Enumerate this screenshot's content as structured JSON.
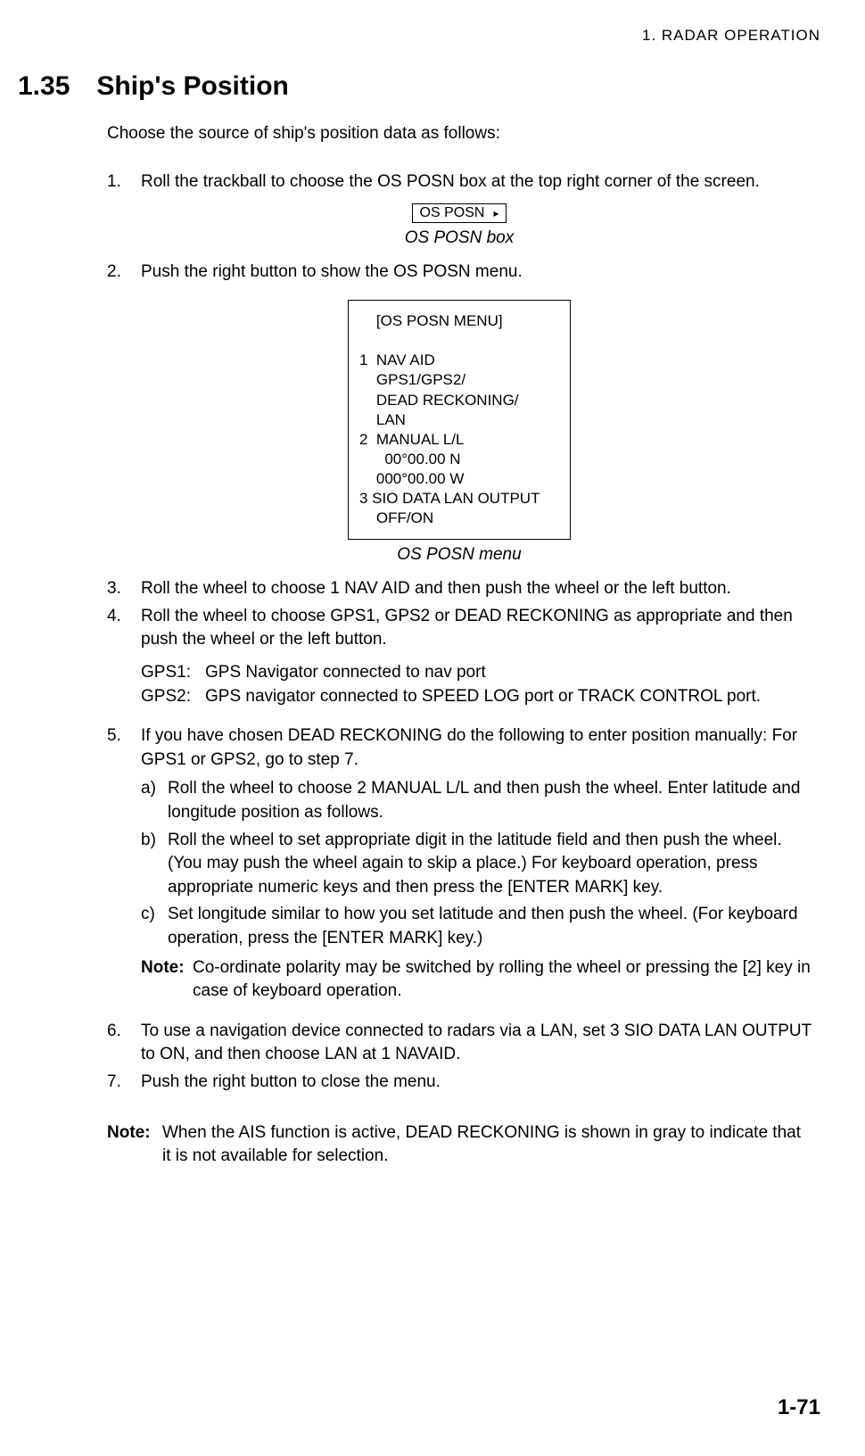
{
  "chapter_header": "1.  RADAR  OPERATION",
  "section": {
    "num": "1.35",
    "title": "Ship's Position"
  },
  "intro": "Choose the source of ship's position data as follows:",
  "steps": {
    "s1": {
      "num": "1.",
      "text": "Roll the trackball to choose the OS POSN box at the top right corner of the screen."
    },
    "s2": {
      "num": "2.",
      "text": "Push the right button to show the OS POSN menu."
    },
    "s3": {
      "num": "3.",
      "text": "Roll the wheel to choose 1 NAV AID and then push the wheel or the left button."
    },
    "s4": {
      "num": "4.",
      "text": "Roll the wheel to choose GPS1, GPS2 or DEAD RECKONING as appropriate and then push the wheel or the left button."
    },
    "s5": {
      "num": "5.",
      "text": "If you have chosen DEAD RECKONING do the following to enter position manually: For GPS1 or GPS2, go to step 7."
    },
    "s6": {
      "num": "6.",
      "text": "To use a navigation device connected to radars via a LAN, set 3 SIO DATA LAN OUTPUT to ON, and then choose LAN at 1 NAVAID."
    },
    "s7": {
      "num": "7.",
      "text": "Push the right button to close the menu."
    }
  },
  "os_posn_box": {
    "label": "OS POSN",
    "caption": "OS POSN box"
  },
  "menu": {
    "text": "    [OS POSN MENU]\n\n1  NAV AID\n    GPS1/GPS2/\n    DEAD RECKONING/\n    LAN\n2  MANUAL L/L\n      00°00.00 N\n    000°00.00 W\n3 SIO DATA LAN OUTPUT\n    OFF/ON",
    "caption": "OS POSN menu"
  },
  "gps_defs": {
    "gps1": {
      "label": "GPS1:",
      "text": "GPS Navigator connected to nav port"
    },
    "gps2": {
      "label": "GPS2:",
      "text": "GPS navigator connected to SPEED LOG port or TRACK CONTROL port."
    }
  },
  "sub_steps": {
    "a": {
      "num": "a)",
      "text": "Roll the wheel to choose 2 MANUAL L/L and then push the wheel. Enter latitude and longitude position as follows."
    },
    "b": {
      "num": "b)",
      "text": "Roll the wheel to set appropriate digit in the latitude field and then push the wheel. (You may push the wheel again to skip a place.) For keyboard operation, press appropriate numeric keys and then press the [ENTER MARK] key."
    },
    "c": {
      "num": "c)",
      "text": "Set longitude similar to how you set latitude and then push the wheel. (For keyboard operation, press the [ENTER MARK] key.)"
    }
  },
  "note_inline": {
    "label": "Note:",
    "text": "Co-ordinate polarity may be switched by rolling the wheel or pressing the [2] key in case of keyboard operation."
  },
  "final_note": {
    "label": "Note:",
    "text": "When the AIS function is active, DEAD RECKONING is shown in gray to indicate that it is not available for selection."
  },
  "page_num": "1-71",
  "colors": {
    "text": "#000000",
    "background": "#ffffff",
    "border": "#000000"
  }
}
